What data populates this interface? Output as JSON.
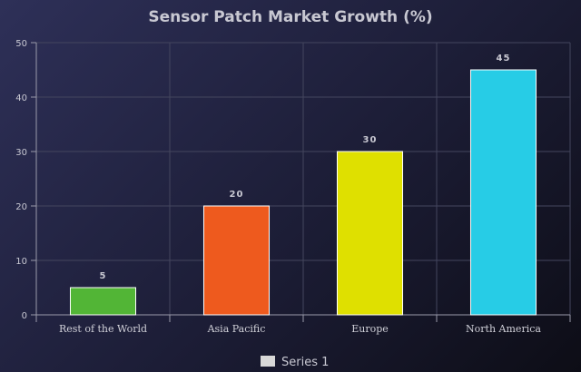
{
  "chart_data": {
    "type": "bar",
    "title": "Sensor Patch Market Growth (%)",
    "xlabel": "",
    "ylabel": "",
    "categories": [
      "Rest of the World",
      "Asia Pacific",
      "Europe",
      "North America"
    ],
    "series": [
      {
        "name": "Series 1",
        "values": [
          5,
          20,
          30,
          45
        ]
      }
    ],
    "bar_colors": [
      "#52b536",
      "#ee5a1e",
      "#dfe000",
      "#27cce6"
    ],
    "ylim": [
      0,
      50
    ],
    "yticks": [
      0,
      10,
      20,
      30,
      40,
      50
    ],
    "grid": true,
    "data_labels": true,
    "legend": {
      "position": "bottom-center",
      "entries": [
        "Series 1"
      ],
      "swatch_color": "#d8d8d8"
    }
  }
}
